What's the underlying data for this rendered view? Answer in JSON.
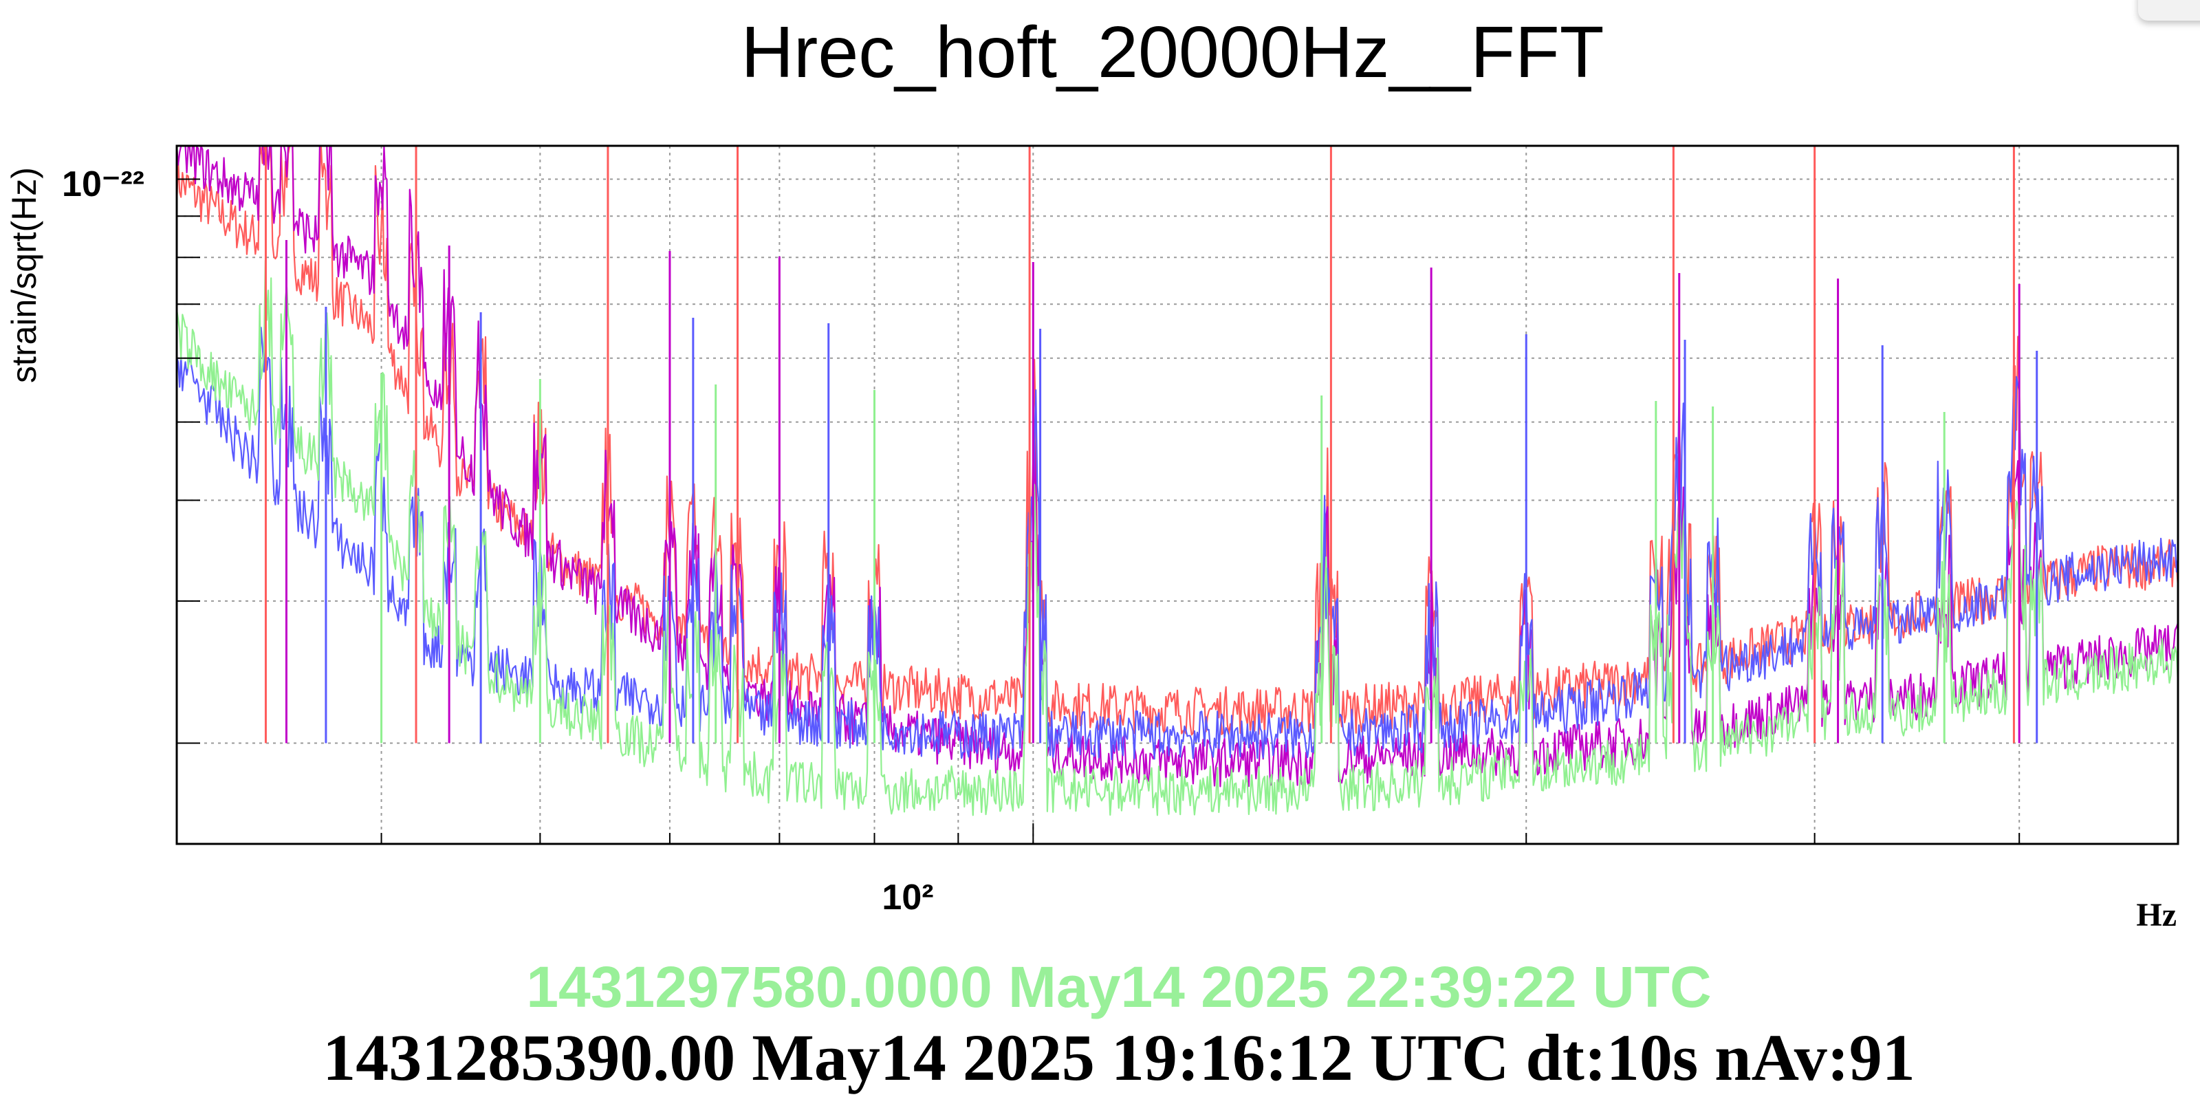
{
  "chart_data": {
    "type": "line",
    "title": "Hrec_hoft_20000Hz__FFT",
    "ylabel": "strain/sqrt(Hz)",
    "xlabel": "Hz",
    "x_scale": "log",
    "y_scale": "log",
    "xlim": [
      30,
      500
    ],
    "ylim": [
      1.5e-23,
      1.1e-22
    ],
    "x_tick_label": "10²",
    "y_tick_label": "10⁻²²",
    "grid": true,
    "series": [
      {
        "color": "#ff5b5b",
        "points": [
          [
            30,
            1e-22
          ],
          [
            32,
            9e-23
          ],
          [
            35,
            8e-23
          ],
          [
            38,
            7e-23
          ],
          [
            40,
            6.4e-23
          ],
          [
            42,
            5.2e-23
          ],
          [
            45,
            4.2e-23
          ],
          [
            48,
            3.8e-23
          ],
          [
            50,
            3.5e-23
          ],
          [
            55,
            3.1e-23
          ],
          [
            60,
            2.8e-23
          ],
          [
            65,
            2.6e-23
          ],
          [
            70,
            2.45e-23
          ],
          [
            80,
            2.35e-23
          ],
          [
            90,
            2.3e-23
          ],
          [
            100,
            2.25e-23
          ],
          [
            120,
            2.2e-23
          ],
          [
            150,
            2.2e-23
          ],
          [
            180,
            2.25e-23
          ],
          [
            200,
            2.3e-23
          ],
          [
            250,
            2.45e-23
          ],
          [
            300,
            2.75e-23
          ],
          [
            350,
            2.9e-23
          ],
          [
            400,
            3.1e-23
          ],
          [
            450,
            3.3e-23
          ],
          [
            500,
            3.35e-23
          ]
        ]
      },
      {
        "color": "#c000c8",
        "points": [
          [
            30,
            1.1e-22
          ],
          [
            32,
            1e-22
          ],
          [
            35,
            9e-23
          ],
          [
            38,
            8e-23
          ],
          [
            40,
            7.5e-23
          ],
          [
            42,
            6e-23
          ],
          [
            45,
            4.5e-23
          ],
          [
            48,
            3.8e-23
          ],
          [
            50,
            3.5e-23
          ],
          [
            55,
            3e-23
          ],
          [
            60,
            2.7e-23
          ],
          [
            65,
            2.4e-23
          ],
          [
            70,
            2.25e-23
          ],
          [
            80,
            2.1e-23
          ],
          [
            90,
            2e-23
          ],
          [
            100,
            1.95e-23
          ],
          [
            120,
            1.9e-23
          ],
          [
            150,
            1.9e-23
          ],
          [
            180,
            1.95e-23
          ],
          [
            200,
            1.95e-23
          ],
          [
            250,
            2.05e-23
          ],
          [
            300,
            2.25e-23
          ],
          [
            350,
            2.3e-23
          ],
          [
            400,
            2.45e-23
          ],
          [
            450,
            2.55e-23
          ],
          [
            500,
            2.65e-23
          ]
        ]
      },
      {
        "color": "#5a5aff",
        "points": [
          [
            30,
            6e-23
          ],
          [
            32,
            5e-23
          ],
          [
            35,
            4e-23
          ],
          [
            38,
            3.5e-23
          ],
          [
            40,
            3.2e-23
          ],
          [
            42,
            2.7e-23
          ],
          [
            45,
            2.55e-23
          ],
          [
            48,
            2.45e-23
          ],
          [
            50,
            2.4e-23
          ],
          [
            55,
            2.3e-23
          ],
          [
            60,
            2.25e-23
          ],
          [
            65,
            2.2e-23
          ],
          [
            70,
            2.15e-23
          ],
          [
            80,
            2.1e-23
          ],
          [
            90,
            2.05e-23
          ],
          [
            100,
            2.05e-23
          ],
          [
            120,
            2.05e-23
          ],
          [
            150,
            2.05e-23
          ],
          [
            180,
            2.1e-23
          ],
          [
            200,
            2.15e-23
          ],
          [
            250,
            2.4e-23
          ],
          [
            300,
            2.7e-23
          ],
          [
            350,
            2.85e-23
          ],
          [
            400,
            3.1e-23
          ],
          [
            450,
            3.3e-23
          ],
          [
            500,
            3.4e-23
          ]
        ]
      },
      {
        "color": "#90f090",
        "points": [
          [
            30,
            6.5e-23
          ],
          [
            32,
            5.5e-23
          ],
          [
            35,
            4.8e-23
          ],
          [
            38,
            4.2e-23
          ],
          [
            40,
            3.8e-23
          ],
          [
            42,
            3e-23
          ],
          [
            45,
            2.6e-23
          ],
          [
            48,
            2.35e-23
          ],
          [
            50,
            2.25e-23
          ],
          [
            55,
            2.1e-23
          ],
          [
            60,
            1.95e-23
          ],
          [
            65,
            1.85e-23
          ],
          [
            70,
            1.8e-23
          ],
          [
            80,
            1.75e-23
          ],
          [
            90,
            1.75e-23
          ],
          [
            100,
            1.75e-23
          ],
          [
            120,
            1.75e-23
          ],
          [
            150,
            1.75e-23
          ],
          [
            180,
            1.8e-23
          ],
          [
            200,
            1.85e-23
          ],
          [
            250,
            1.95e-23
          ],
          [
            300,
            2.15e-23
          ],
          [
            350,
            2.2e-23
          ],
          [
            400,
            2.35e-23
          ],
          [
            450,
            2.45e-23
          ],
          [
            500,
            2.55e-23
          ]
        ]
      }
    ],
    "lines_hz": [
      34,
      35,
      37,
      40,
      42,
      44,
      46,
      50,
      55,
      60,
      62,
      64,
      66,
      70,
      75,
      80,
      99.5,
      100,
      101,
      150,
      152,
      175,
      200,
      240,
      246,
      248,
      250,
      260,
      300,
      310,
      330,
      360,
      397,
      400,
      410
    ]
  },
  "colors": {
    "time_primary": "#000000",
    "time_secondary": "#99f099"
  },
  "footer": {
    "timestamp_secondary": "1431297580.0000 May14 2025 22:39:22 UTC",
    "timestamp_primary": "1431285390.00 May14 2025 19:16:12 UTC dt:10s nAv:91"
  }
}
